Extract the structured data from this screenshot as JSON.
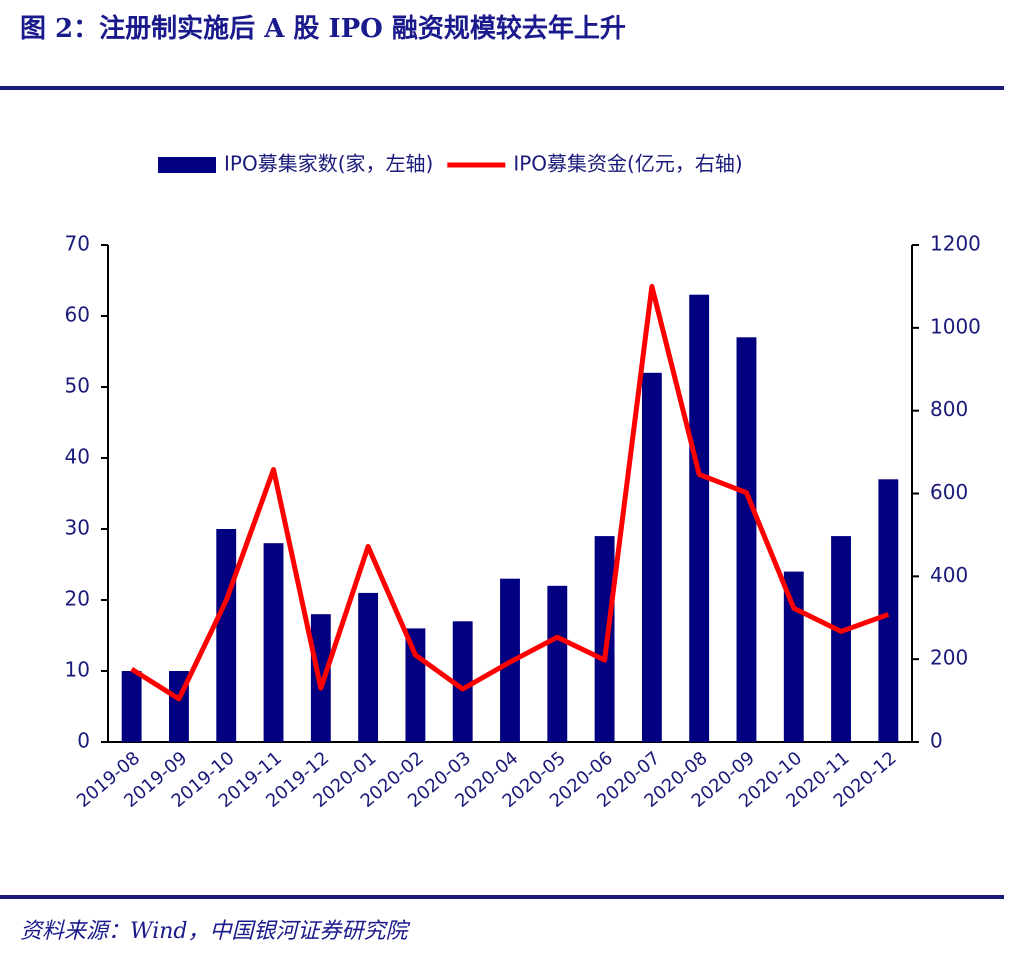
{
  "chart_data": {
    "type": "combo",
    "title": "图 2：注册制实施后 A 股 IPO 融资规模较去年上升",
    "source": "资料来源：Wind，中国银河证券研究院",
    "categories": [
      "2019-08",
      "2019-09",
      "2019-10",
      "2019-11",
      "2019-12",
      "2020-01",
      "2020-02",
      "2020-03",
      "2020-04",
      "2020-05",
      "2020-06",
      "2020-07",
      "2020-08",
      "2020-09",
      "2020-10",
      "2020-11",
      "2020-12"
    ],
    "series": [
      {
        "name": "IPO募集家数(家，左轴)",
        "type": "bar",
        "color": "#000080",
        "axis": "y",
        "values": [
          10,
          10,
          30,
          28,
          18,
          21,
          16,
          17,
          23,
          22,
          29,
          52,
          63,
          57,
          24,
          29,
          37
        ]
      },
      {
        "name": "IPO募集资金(亿元，右轴)",
        "type": "line",
        "color": "#ff0000",
        "axis": "y2",
        "values": [
          176,
          104,
          342,
          658,
          130,
          472,
          210,
          128,
          193,
          253,
          198,
          1100,
          646,
          602,
          323,
          267,
          308
        ]
      }
    ],
    "ylim": [
      0,
      70
    ],
    "yticks": [
      0,
      10,
      20,
      30,
      40,
      50,
      60,
      70
    ],
    "y2lim": [
      0,
      1200
    ],
    "y2ticks": [
      0,
      200,
      400,
      600,
      800,
      1000,
      1200
    ],
    "legend": "top",
    "grid": false
  }
}
